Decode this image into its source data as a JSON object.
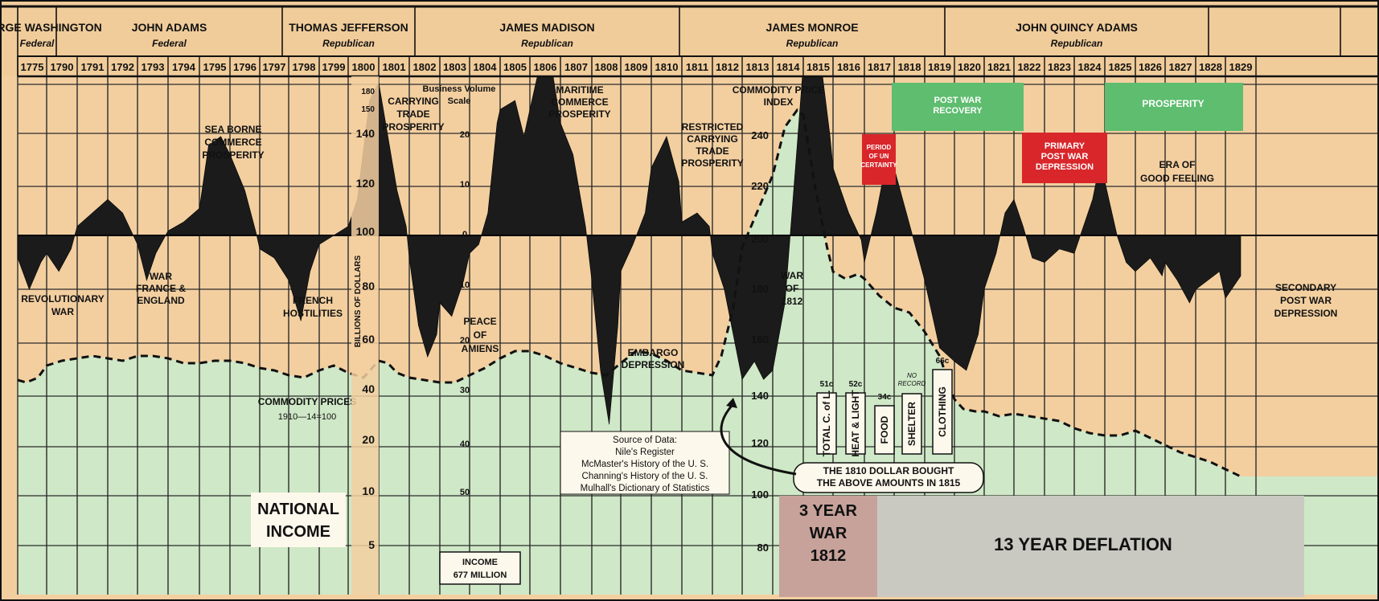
{
  "chart_data": {
    "type": "area",
    "title": "",
    "years": [
      "1775",
      "1790",
      "1791",
      "1792",
      "1793",
      "1794",
      "1795",
      "1796",
      "1797",
      "1798",
      "1799",
      "1800",
      "1801",
      "1802",
      "1803",
      "1804",
      "1805",
      "1806",
      "1807",
      "1808",
      "1809",
      "1810",
      "1811",
      "1812",
      "1813",
      "1814",
      "1815",
      "1816",
      "1817",
      "1818",
      "1819",
      "1820",
      "1821",
      "1822",
      "1823",
      "1824",
      "1825",
      "1826",
      "1827",
      "1828",
      "1829"
    ],
    "presidents": [
      {
        "name": "GEORGE WASHINGTON",
        "party": "Federal",
        "from": 1,
        "to": 8
      },
      {
        "name": "JOHN ADAMS",
        "party": "Federal",
        "from": 8,
        "to": 11
      },
      {
        "name": "THOMAS JEFFERSON",
        "party": "Republican",
        "from": 11,
        "to": 19
      },
      {
        "name": "JAMES MADISON",
        "party": "Republican",
        "from": 19,
        "to": 27
      },
      {
        "name": "JAMES MONROE",
        "party": "Republican",
        "from": 27,
        "to": 35
      },
      {
        "name": "JOHN QUINCY ADAMS",
        "party": "Republican",
        "from": 35,
        "to": 39
      }
    ],
    "business_activity": [
      [
        1775,
        -5
      ],
      [
        1775.4,
        -12
      ],
      [
        1775.8,
        -6
      ],
      [
        1790,
        -4
      ],
      [
        1790.4,
        -8
      ],
      [
        1790.8,
        -3
      ],
      [
        1791,
        2
      ],
      [
        1791.5,
        5
      ],
      [
        1792,
        8
      ],
      [
        1792.5,
        5
      ],
      [
        1793,
        -2
      ],
      [
        1793.3,
        -10
      ],
      [
        1793.6,
        -4
      ],
      [
        1794,
        1
      ],
      [
        1794.5,
        3
      ],
      [
        1795,
        6
      ],
      [
        1795.3,
        20
      ],
      [
        1795.7,
        22
      ],
      [
        1796,
        18
      ],
      [
        1796.5,
        10
      ],
      [
        1796.9,
        0
      ],
      [
        1797,
        -3
      ],
      [
        1797.5,
        -5
      ],
      [
        1798,
        -10
      ],
      [
        1798.4,
        -19
      ],
      [
        1798.7,
        -8
      ],
      [
        1799,
        -2
      ],
      [
        1799.5,
        0
      ],
      [
        1800,
        2
      ],
      [
        1800.3,
        8
      ],
      [
        1800.7,
        30
      ],
      [
        1801,
        34
      ],
      [
        1801.3,
        22
      ],
      [
        1801.6,
        10
      ],
      [
        1801.9,
        2
      ],
      [
        1802,
        -5
      ],
      [
        1802.3,
        -20
      ],
      [
        1802.6,
        -27
      ],
      [
        1802.9,
        -22
      ],
      [
        1803,
        -15
      ],
      [
        1803.4,
        -18
      ],
      [
        1803.8,
        -10
      ],
      [
        1804,
        -4
      ],
      [
        1804.3,
        -2
      ],
      [
        1804.6,
        5
      ],
      [
        1804.9,
        25
      ],
      [
        1805,
        28
      ],
      [
        1805.5,
        30
      ],
      [
        1805.8,
        22
      ],
      [
        1806,
        28
      ],
      [
        1806.4,
        40
      ],
      [
        1806.7,
        38
      ],
      [
        1807,
        25
      ],
      [
        1807.4,
        18
      ],
      [
        1807.8,
        2
      ],
      [
        1808,
        -10
      ],
      [
        1808.3,
        -30
      ],
      [
        1808.6,
        -42
      ],
      [
        1808.9,
        -20
      ],
      [
        1809,
        -8
      ],
      [
        1809.4,
        -2
      ],
      [
        1809.8,
        5
      ],
      [
        1810,
        15
      ],
      [
        1810.5,
        22
      ],
      [
        1810.9,
        12
      ],
      [
        1811,
        3
      ],
      [
        1811.5,
        5
      ],
      [
        1811.9,
        2
      ],
      [
        1812,
        -4
      ],
      [
        1812.4,
        -12
      ],
      [
        1812.7,
        -22
      ],
      [
        1813,
        -32
      ],
      [
        1813.4,
        -28
      ],
      [
        1813.7,
        -32
      ],
      [
        1814,
        -30
      ],
      [
        1814.4,
        -15
      ],
      [
        1814.8,
        20
      ],
      [
        1815,
        38
      ],
      [
        1815.3,
        45
      ],
      [
        1815.6,
        38
      ],
      [
        1815.9,
        22
      ],
      [
        1816,
        15
      ],
      [
        1816.5,
        5
      ],
      [
        1816.9,
        -1
      ],
      [
        1817,
        -6
      ],
      [
        1817.4,
        5
      ],
      [
        1817.7,
        15
      ],
      [
        1818,
        15
      ],
      [
        1818.4,
        5
      ],
      [
        1818.8,
        -5
      ],
      [
        1819,
        -10
      ],
      [
        1819.5,
        -25
      ],
      [
        1820,
        -28
      ],
      [
        1820.4,
        -30
      ],
      [
        1820.8,
        -22
      ],
      [
        1821,
        -12
      ],
      [
        1821.4,
        -4
      ],
      [
        1821.7,
        5
      ],
      [
        1822,
        8
      ],
      [
        1822.3,
        2
      ],
      [
        1822.6,
        -5
      ],
      [
        1823,
        -6
      ],
      [
        1823.5,
        -3
      ],
      [
        1824,
        -4
      ],
      [
        1824.3,
        2
      ],
      [
        1824.6,
        8
      ],
      [
        1824.9,
        18
      ],
      [
        1825,
        12
      ],
      [
        1825.4,
        0
      ],
      [
        1825.7,
        -6
      ],
      [
        1826,
        -8
      ],
      [
        1826.5,
        -5
      ],
      [
        1826.9,
        -9
      ],
      [
        1827,
        -6
      ],
      [
        1827.4,
        -10
      ],
      [
        1827.8,
        -15
      ],
      [
        1828,
        -12
      ],
      [
        1828.4,
        -10
      ],
      [
        1828.8,
        -8
      ],
      [
        1829,
        -14
      ],
      [
        1829.5,
        -9
      ]
    ],
    "commodity_prices": [
      [
        1775,
        140
      ],
      [
        1775.3,
        139
      ],
      [
        1775.7,
        141
      ],
      [
        1790,
        146
      ],
      [
        1790.5,
        148
      ],
      [
        1791,
        149
      ],
      [
        1791.5,
        150
      ],
      [
        1792,
        149
      ],
      [
        1792.5,
        148
      ],
      [
        1793,
        150
      ],
      [
        1793.5,
        150
      ],
      [
        1794,
        149
      ],
      [
        1794.5,
        147
      ],
      [
        1795,
        147
      ],
      [
        1795.5,
        148
      ],
      [
        1796,
        148
      ],
      [
        1796.5,
        147
      ],
      [
        1797,
        145
      ],
      [
        1797.5,
        144
      ],
      [
        1798,
        142
      ],
      [
        1798.5,
        141
      ],
      [
        1799,
        144
      ],
      [
        1799.5,
        146
      ],
      [
        1800,
        143
      ],
      [
        1800.5,
        141
      ],
      [
        1801,
        148
      ],
      [
        1801.3,
        147
      ],
      [
        1801.6,
        143
      ],
      [
        1802,
        141
      ],
      [
        1802.5,
        140
      ],
      [
        1803,
        139
      ],
      [
        1803.5,
        139
      ],
      [
        1804,
        142
      ],
      [
        1804.5,
        145
      ],
      [
        1805,
        149
      ],
      [
        1805.5,
        152
      ],
      [
        1806,
        152
      ],
      [
        1806.5,
        150
      ],
      [
        1807,
        147
      ],
      [
        1807.5,
        145
      ],
      [
        1808,
        143
      ],
      [
        1808.5,
        142
      ],
      [
        1809,
        147
      ],
      [
        1809.5,
        152
      ],
      [
        1810,
        151
      ],
      [
        1810.5,
        148
      ],
      [
        1811,
        144
      ],
      [
        1811.5,
        143
      ],
      [
        1812,
        142
      ],
      [
        1812.3,
        150
      ],
      [
        1812.7,
        170
      ],
      [
        1813,
        195
      ],
      [
        1813.5,
        210
      ],
      [
        1814,
        225
      ],
      [
        1814.4,
        245
      ],
      [
        1814.8,
        252
      ],
      [
        1815,
        250
      ],
      [
        1815.4,
        220
      ],
      [
        1815.8,
        195
      ],
      [
        1816,
        185
      ],
      [
        1816.4,
        182
      ],
      [
        1816.8,
        184
      ],
      [
        1817,
        182
      ],
      [
        1817.5,
        175
      ],
      [
        1818,
        170
      ],
      [
        1818.5,
        168
      ],
      [
        1819,
        160
      ],
      [
        1819.5,
        150
      ],
      [
        1820,
        132
      ],
      [
        1820.3,
        128
      ],
      [
        1820.7,
        127
      ],
      [
        1821,
        127
      ],
      [
        1821.5,
        125
      ],
      [
        1822,
        126
      ],
      [
        1822.5,
        125
      ],
      [
        1823,
        124
      ],
      [
        1823.5,
        123
      ],
      [
        1824,
        120
      ],
      [
        1824.5,
        118
      ],
      [
        1825,
        117
      ],
      [
        1825.5,
        117
      ],
      [
        1826,
        119
      ],
      [
        1826.5,
        116
      ],
      [
        1827,
        113
      ],
      [
        1827.5,
        110
      ],
      [
        1828,
        108
      ],
      [
        1828.5,
        106
      ],
      [
        1829,
        103
      ],
      [
        1829.5,
        100
      ]
    ],
    "national_income_label": [
      "NATIONAL",
      "INCOME"
    ],
    "income_box": [
      "INCOME",
      "677 MILLION"
    ],
    "annotations": [
      {
        "lines": [
          "REVOLUTIONARY",
          "WAR"
        ]
      },
      {
        "lines": [
          "WAR",
          "FRANCE &",
          "ENGLAND"
        ]
      },
      {
        "lines": [
          "SEA BORNE",
          "COMMERCE",
          "PROSPERITY"
        ]
      },
      {
        "lines": [
          "FRENCH",
          "HOSTILITIES"
        ]
      },
      {
        "lines": [
          "CARRYING",
          "TRADE",
          "PROSPERITY"
        ]
      },
      {
        "lines": [
          "PEACE",
          "OF",
          "AMIENS"
        ]
      },
      {
        "lines": [
          "MARITIME",
          "COMMERCE",
          "PROSPERITY"
        ]
      },
      {
        "lines": [
          "EMBARGO",
          "DEPRESSION"
        ]
      },
      {
        "lines": [
          "RESTRICTED",
          "CARRYING",
          "TRADE",
          "PROSPERITY"
        ]
      },
      {
        "lines": [
          "WAR",
          "OF",
          "1812"
        ]
      },
      {
        "lines": [
          "ERA OF",
          "GOOD FEELING"
        ]
      },
      {
        "lines": [
          "SECONDARY",
          "POST WAR",
          "DEPRESSION"
        ]
      },
      {
        "lines": [
          "COMMODITY PRICES",
          "1910—14=100"
        ]
      }
    ],
    "boxes": {
      "post_war_recovery": [
        "POST WAR",
        "RECOVERY"
      ],
      "prosperity": [
        "PROSPERITY"
      ],
      "primary_post_war_depression": [
        "PRIMARY",
        "POST WAR",
        "DEPRESSION"
      ],
      "period_of_uncertainty": [
        "PERIOD",
        "OF UN",
        "CERTAINTY"
      ],
      "three_year_war": [
        "3 YEAR",
        "WAR",
        "1812"
      ],
      "thirteen_year_deflation": "13 YEAR DEFLATION"
    },
    "axes": {
      "billions_of_dollars": {
        "label": "BILLIONS OF DOLLARS",
        "ticks": [
          "180",
          "150",
          "140",
          "120",
          "100",
          "80",
          "60",
          "40",
          "20",
          "10",
          "5"
        ]
      },
      "business_volume": {
        "label": [
          "Business Volume",
          "Scale"
        ],
        "ticks": [
          "20",
          "10",
          "0",
          "10",
          "20",
          "30",
          "40",
          "50"
        ]
      },
      "commodity_price_index": {
        "label": [
          "COMMODITY PRICE",
          "INDEX"
        ],
        "ticks": [
          "240",
          "220",
          "200",
          "180",
          "160",
          "140",
          "120",
          "100",
          "80"
        ]
      }
    },
    "purchasing_power": {
      "caption": [
        "THE 1810 DOLLAR BOUGHT",
        "THE ABOVE AMOUNTS IN 1815"
      ],
      "bars": [
        {
          "label": "TOTAL C. of L.",
          "value": "51c"
        },
        {
          "label": "HEAT & LIGHT",
          "value": "52c"
        },
        {
          "label": "FOOD",
          "value": "34c"
        },
        {
          "label": "SHELTER",
          "value": "NO RECORD"
        },
        {
          "label": "CLOTHING",
          "value": "66c"
        }
      ]
    },
    "source": [
      "Source of Data:",
      "Nile's Register",
      "McMaster's History of the U. S.",
      "Channing's History of the U. S.",
      "Mulhall's Dictionary of Statistics"
    ]
  },
  "colors": {
    "background": "#f3cfa0",
    "commodity_fill": "#cfe8c7",
    "business_fill": "#1b1b1b",
    "grid": "#2b2b2b",
    "green_box": "#5ebd6f",
    "red_box": "#d8262b",
    "war_box": "#c7a29a",
    "deflation_box": "#c9c9c2",
    "header_bg": "#f0cc9a"
  }
}
